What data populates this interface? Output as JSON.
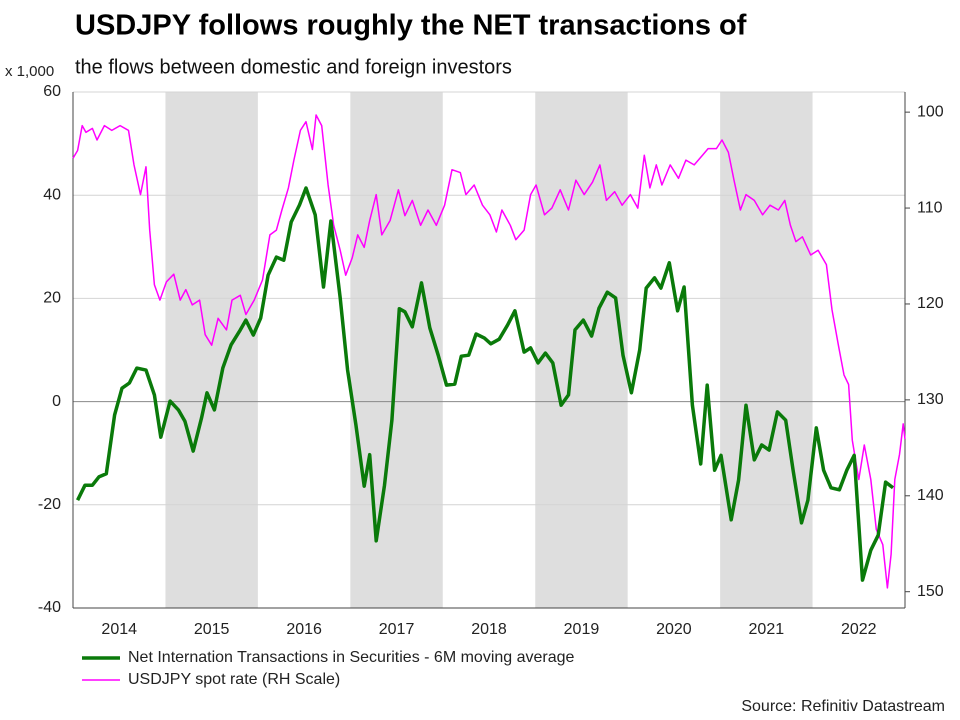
{
  "chart_data": {
    "type": "line",
    "title": "USDJPY follows roughly the NET transactions of",
    "subtitle": "the flows between domestic and foreign investors",
    "y_unit_label": "x 1,000",
    "source": "Source: Refinitiv Datastream",
    "xlim": [
      2014,
      2023
    ],
    "xticks": [
      {
        "value": 2014.5,
        "label": "2014"
      },
      {
        "value": 2015.5,
        "label": "2015"
      },
      {
        "value": 2016.5,
        "label": "2016"
      },
      {
        "value": 2017.5,
        "label": "2017"
      },
      {
        "value": 2018.5,
        "label": "2018"
      },
      {
        "value": 2019.5,
        "label": "2019"
      },
      {
        "value": 2020.5,
        "label": "2020"
      },
      {
        "value": 2021.5,
        "label": "2021"
      },
      {
        "value": 2022.5,
        "label": "2022"
      }
    ],
    "shaded_years": [
      2015,
      2017,
      2019,
      2021
    ],
    "ylim": [
      -40,
      60
    ],
    "yticks": [
      -40,
      -20,
      0,
      20,
      40,
      60
    ],
    "y2lim": [
      97.9,
      151.7
    ],
    "y2ticks": [
      100,
      110,
      120,
      130,
      140,
      150
    ],
    "y2_inverted": true,
    "grid": true,
    "series": [
      {
        "name": "Net Internation Transactions in Securities - 6M moving average",
        "color": "#0a7a0a",
        "x": [
          2014.05,
          2014.13,
          2014.21,
          2014.28,
          2014.36,
          2014.45,
          2014.53,
          2014.61,
          2014.69,
          2014.79,
          2014.88,
          2014.95,
          2015.05,
          2015.14,
          2015.21,
          2015.3,
          2015.39,
          2015.45,
          2015.53,
          2015.62,
          2015.71,
          2015.81,
          2015.87,
          2015.95,
          2016.03,
          2016.11,
          2016.2,
          2016.28,
          2016.36,
          2016.45,
          2016.52,
          2016.62,
          2016.71,
          2016.79,
          2016.89,
          2016.97,
          2017.06,
          2017.15,
          2017.21,
          2017.28,
          2017.37,
          2017.45,
          2017.53,
          2017.59,
          2017.67,
          2017.77,
          2017.86,
          2017.95,
          2018.04,
          2018.13,
          2018.2,
          2018.28,
          2018.36,
          2018.45,
          2018.52,
          2018.61,
          2018.7,
          2018.78,
          2018.88,
          2018.95,
          2019.03,
          2019.11,
          2019.19,
          2019.28,
          2019.36,
          2019.43,
          2019.52,
          2019.61,
          2019.69,
          2019.78,
          2019.87,
          2019.95,
          2020.04,
          2020.13,
          2020.2,
          2020.29,
          2020.36,
          2020.45,
          2020.54,
          2020.61,
          2020.7,
          2020.79,
          2020.86,
          2020.94,
          2021.01,
          2021.12,
          2021.2,
          2021.28,
          2021.37,
          2021.45,
          2021.53,
          2021.62,
          2021.71,
          2021.79,
          2021.88,
          2021.95,
          2022.04,
          2022.12,
          2022.2,
          2022.29,
          2022.37,
          2022.45,
          2022.54,
          2022.63,
          2022.71,
          2022.79,
          2022.87
        ],
        "values": [
          -19.1,
          -16.2,
          -16.2,
          -14.6,
          -14,
          -2.6,
          2.6,
          3.6,
          6.5,
          6.1,
          1.3,
          -6.9,
          0.1,
          -1.6,
          -3.8,
          -9.6,
          -3.2,
          1.7,
          -1.6,
          6.5,
          11,
          13.9,
          15.8,
          12.9,
          16.2,
          24.5,
          28,
          27.4,
          34.8,
          38.1,
          41.4,
          36.2,
          22.2,
          35,
          20.1,
          6.1,
          -4.5,
          -16.4,
          -10.3,
          -27,
          -16.2,
          -3.6,
          18,
          17.4,
          14.5,
          23,
          14.3,
          9,
          3.2,
          3.4,
          8.8,
          9,
          13.1,
          12.3,
          11.2,
          12.1,
          14.8,
          17.6,
          9.6,
          10.4,
          7.5,
          9.4,
          7.5,
          -0.7,
          1.3,
          13.9,
          15.8,
          12.7,
          18.1,
          21.2,
          20.1,
          9,
          1.7,
          10,
          22,
          24,
          22,
          26.9,
          17.6,
          22.2,
          -0.7,
          -12.1,
          3.2,
          -13.3,
          -10.4,
          -22.9,
          -15.2,
          -0.7,
          -11.3,
          -8.4,
          -9.4,
          -2,
          -3.6,
          -13.3,
          -23.5,
          -19.1,
          -5.1,
          -13.3,
          -16.7,
          -17.1,
          -13.3,
          -10.4,
          -34.6,
          -28.8,
          -25.9,
          -15.6,
          -16.7
        ]
      },
      {
        "name": "USDJPY spot rate (RH Scale)",
        "color": "#ff00ff",
        "axis": "y2",
        "x": [
          2014.0,
          2014.05,
          2014.1,
          2014.14,
          2014.21,
          2014.26,
          2014.34,
          2014.42,
          2014.51,
          2014.6,
          2014.66,
          2014.73,
          2014.79,
          2014.83,
          2014.88,
          2014.94,
          2015.01,
          2015.09,
          2015.16,
          2015.22,
          2015.29,
          2015.37,
          2015.43,
          2015.5,
          2015.57,
          2015.66,
          2015.72,
          2015.81,
          2015.87,
          2015.96,
          2016.05,
          2016.13,
          2016.2,
          2016.26,
          2016.33,
          2016.39,
          2016.46,
          2016.52,
          2016.59,
          2016.63,
          2016.69,
          2016.76,
          2016.82,
          2016.89,
          2016.95,
          2017.02,
          2017.08,
          2017.15,
          2017.21,
          2017.28,
          2017.34,
          2017.43,
          2017.52,
          2017.59,
          2017.67,
          2017.76,
          2017.84,
          2017.93,
          2018.02,
          2018.1,
          2018.19,
          2018.25,
          2018.34,
          2018.43,
          2018.51,
          2018.58,
          2018.64,
          2018.73,
          2018.79,
          2018.88,
          2018.95,
          2019.01,
          2019.1,
          2019.18,
          2019.27,
          2019.36,
          2019.44,
          2019.53,
          2019.62,
          2019.7,
          2019.77,
          2019.86,
          2019.94,
          2020.03,
          2020.11,
          2020.18,
          2020.24,
          2020.31,
          2020.37,
          2020.46,
          2020.55,
          2020.63,
          2020.72,
          2020.81,
          2020.87,
          2020.96,
          2021.02,
          2021.09,
          2021.15,
          2021.22,
          2021.28,
          2021.37,
          2021.46,
          2021.54,
          2021.63,
          2021.7,
          2021.76,
          2021.82,
          2021.89,
          2021.98,
          2022.06,
          2022.15,
          2022.21,
          2022.28,
          2022.34,
          2022.39,
          2022.43,
          2022.5,
          2022.56,
          2022.63,
          2022.69,
          2022.76,
          2022.81,
          2022.85,
          2022.89,
          2022.94,
          2022.98,
          2023.0
        ],
        "values": [
          104.8,
          104,
          101.4,
          102.1,
          101.7,
          102.9,
          101.4,
          101.9,
          101.4,
          101.9,
          105.5,
          108.6,
          105.7,
          112.3,
          118,
          119.6,
          117.7,
          116.9,
          119.6,
          118.5,
          120.1,
          119.6,
          123.2,
          124.3,
          121.5,
          122.7,
          119.6,
          119.1,
          121.1,
          119.6,
          117.5,
          112.8,
          112.3,
          110.2,
          107.9,
          105,
          101.9,
          101,
          103.9,
          100.3,
          101.4,
          107.6,
          111.8,
          114.4,
          117,
          115.2,
          112.8,
          114.1,
          111.3,
          108.6,
          112.8,
          111.3,
          108.1,
          110.8,
          109.2,
          111.8,
          110.2,
          111.8,
          109.7,
          106,
          106.3,
          108.6,
          107.6,
          109.7,
          110.7,
          112.5,
          110.2,
          111.8,
          113.3,
          112.3,
          108.6,
          107.6,
          110.7,
          110,
          108.1,
          110.2,
          107.1,
          108.6,
          107.3,
          105.5,
          109.2,
          108.3,
          109.7,
          108.6,
          110,
          104.5,
          107.9,
          105.5,
          107.6,
          105.5,
          106.9,
          105,
          105.5,
          104.5,
          103.8,
          103.8,
          102.9,
          104.2,
          107.1,
          110.2,
          108.6,
          109.2,
          110.7,
          109.7,
          110.2,
          109.2,
          111.8,
          113.5,
          113,
          114.9,
          114.4,
          115.9,
          120.6,
          124.3,
          127.4,
          128.4,
          134.2,
          138.3,
          134.7,
          138.3,
          143.5,
          145.1,
          149.6,
          146.1,
          138.3,
          135.7,
          132.5,
          134.1
        ]
      }
    ]
  }
}
